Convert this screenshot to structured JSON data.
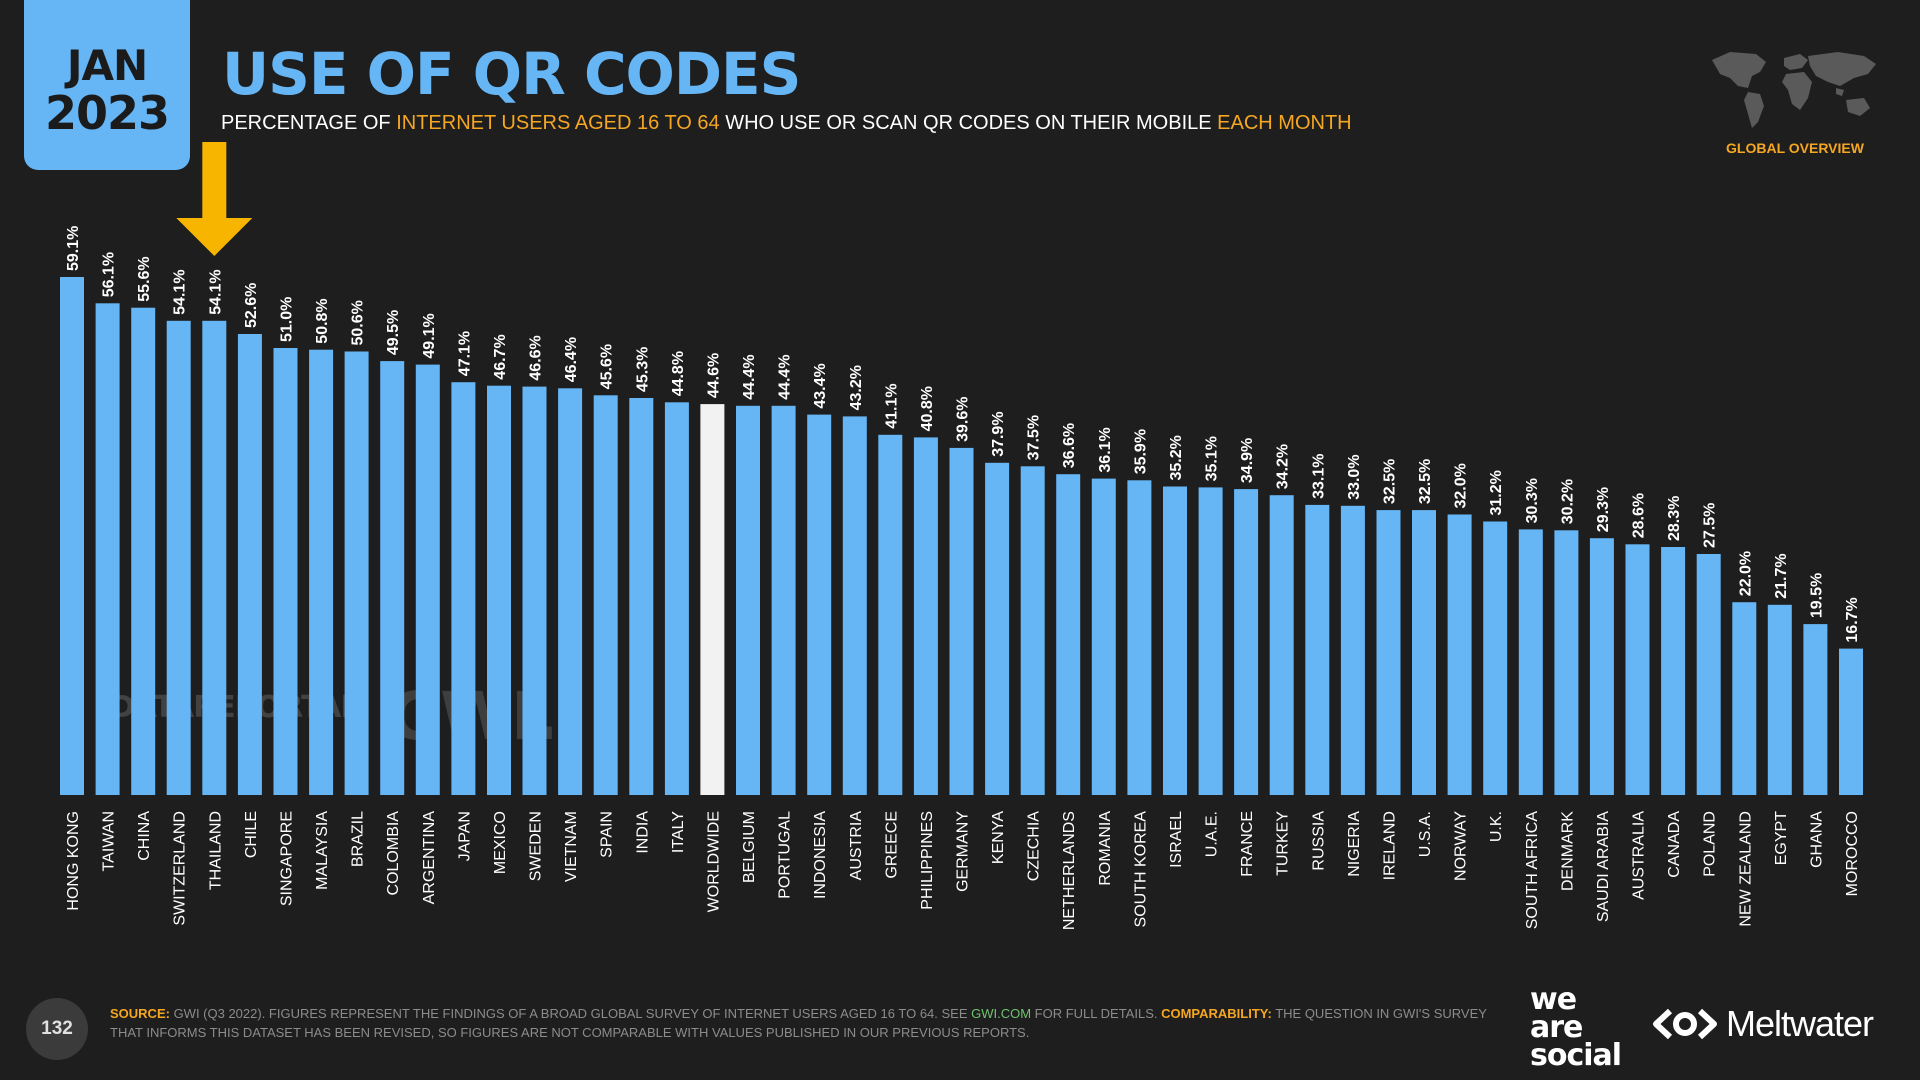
{
  "header": {
    "date_month": "JAN",
    "date_year": "2023",
    "title": "USE OF QR CODES",
    "subtitle_parts": [
      {
        "text": "PERCENTAGE OF ",
        "highlight": false
      },
      {
        "text": "INTERNET USERS AGED 16 TO 64",
        "highlight": true
      },
      {
        "text": " WHO USE OR SCAN QR CODES ON THEIR MOBILE ",
        "highlight": false
      },
      {
        "text": "EACH MONTH",
        "highlight": true
      }
    ],
    "section_label": "GLOBAL OVERVIEW"
  },
  "watermark": {
    "left": "DATAREPORTAL",
    "right": "GWI."
  },
  "footer": {
    "page_number": "132",
    "source_label": "SOURCE:",
    "source_text": " GWI (Q3 2022). FIGURES REPRESENT THE FINDINGS OF A BROAD GLOBAL SURVEY OF INTERNET USERS AGED 16 TO 64. SEE ",
    "source_link": "GWI.COM",
    "source_after": " FOR FULL DETAILS. ",
    "comparability_label": "COMPARABILITY:",
    "comparability_text": " THE QUESTION IN GWI'S SURVEY THAT INFORMS THIS DATASET HAS BEEN REVISED, SO FIGURES ARE NOT COMPARABLE WITH VALUES PUBLISHED IN OUR PREVIOUS REPORTS."
  },
  "logos": {
    "was_line1": "we",
    "was_line2": "are",
    "was_line3": "social",
    "meltwater": "Meltwater"
  },
  "colors": {
    "accent": "#66b5f5",
    "highlight": "#f5a623",
    "worldwide_bar": "#f2f2f2",
    "arrow": "#f7b500"
  },
  "chart_data": {
    "type": "bar",
    "categories": [
      "HONG KONG",
      "TAIWAN",
      "CHINA",
      "SWITZERLAND",
      "THAILAND",
      "CHILE",
      "SINGAPORE",
      "MALAYSIA",
      "BRAZIL",
      "COLOMBIA",
      "ARGENTINA",
      "JAPAN",
      "MEXICO",
      "SWEDEN",
      "VIETNAM",
      "SPAIN",
      "INDIA",
      "ITALY",
      "WORLDWIDE",
      "BELGIUM",
      "PORTUGAL",
      "INDONESIA",
      "AUSTRIA",
      "GREECE",
      "PHILIPPINES",
      "GERMANY",
      "KENYA",
      "CZECHIA",
      "NETHERLANDS",
      "ROMANIA",
      "SOUTH KOREA",
      "ISRAEL",
      "U.A.E.",
      "FRANCE",
      "TURKEY",
      "RUSSIA",
      "NIGERIA",
      "IRELAND",
      "U.S.A.",
      "NORWAY",
      "U.K.",
      "SOUTH AFRICA",
      "DENMARK",
      "SAUDI ARABIA",
      "AUSTRALIA",
      "CANADA",
      "POLAND",
      "NEW ZEALAND",
      "EGYPT",
      "GHANA",
      "MOROCCO"
    ],
    "values": [
      59.1,
      56.1,
      55.6,
      54.1,
      54.1,
      52.6,
      51.0,
      50.8,
      50.6,
      49.5,
      49.1,
      47.1,
      46.7,
      46.6,
      46.4,
      45.6,
      45.3,
      44.8,
      44.6,
      44.4,
      44.4,
      43.4,
      43.2,
      41.1,
      40.8,
      39.6,
      37.9,
      37.5,
      36.6,
      36.1,
      35.9,
      35.2,
      35.1,
      34.9,
      34.2,
      33.1,
      33.0,
      32.5,
      32.5,
      32.0,
      31.2,
      30.3,
      30.2,
      29.3,
      28.6,
      28.3,
      27.5,
      22.0,
      21.7,
      19.5,
      16.7
    ],
    "labels": [
      "59.1%",
      "56.1%",
      "55.6%",
      "54.1%",
      "54.1%",
      "52.6%",
      "51.0%",
      "50.8%",
      "50.6%",
      "49.5%",
      "49.1%",
      "47.1%",
      "46.7%",
      "46.6%",
      "46.4%",
      "45.6%",
      "45.3%",
      "44.8%",
      "44.6%",
      "44.4%",
      "44.4%",
      "43.4%",
      "43.2%",
      "41.1%",
      "40.8%",
      "39.6%",
      "37.9%",
      "37.5%",
      "36.6%",
      "36.1%",
      "35.9%",
      "35.2%",
      "35.1%",
      "34.9%",
      "34.2%",
      "33.1%",
      "33.0%",
      "32.5%",
      "32.5%",
      "32.0%",
      "31.2%",
      "30.3%",
      "30.2%",
      "29.3%",
      "28.6%",
      "28.3%",
      "27.5%",
      "22.0%",
      "21.7%",
      "19.5%",
      "16.7%"
    ],
    "highlighted_category": "WORLDWIDE",
    "arrow_category": "THAILAND",
    "ylim": [
      0,
      60
    ],
    "grid": false
  }
}
